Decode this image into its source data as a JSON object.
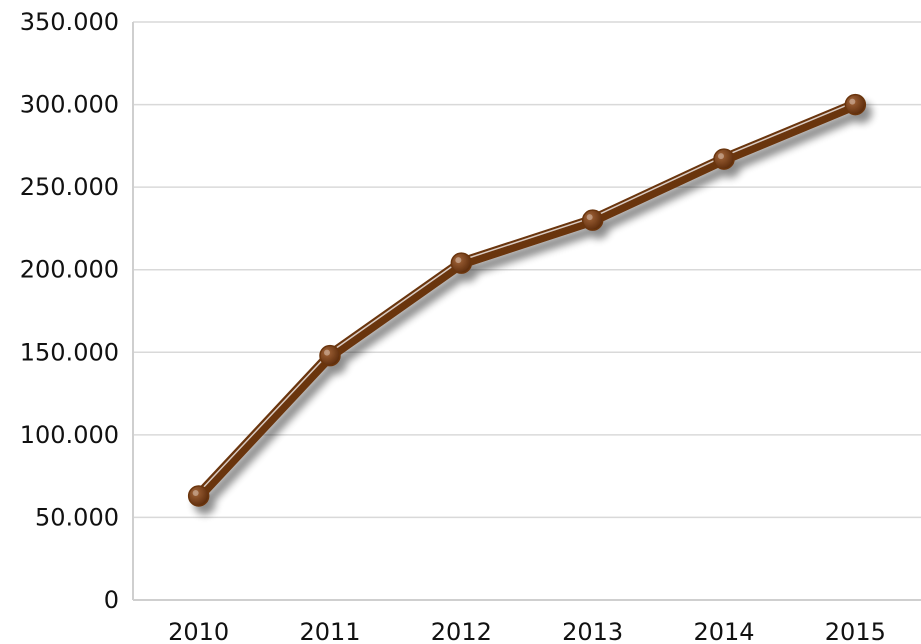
{
  "chart_data": {
    "type": "line",
    "title": "",
    "xlabel": "",
    "ylabel": "",
    "categories": [
      "2010",
      "2011",
      "2012",
      "2013",
      "2014",
      "2015"
    ],
    "series": [
      {
        "values": [
          63000,
          148000,
          204000,
          230000,
          267000,
          300000
        ]
      }
    ],
    "ylim": [
      0,
      350000
    ],
    "yticks": [
      0,
      50000,
      100000,
      150000,
      200000,
      250000,
      300000,
      350000
    ],
    "ytick_labels": [
      "0",
      "50.000",
      "100.000",
      "150.000",
      "200.000",
      "250.000",
      "300.000",
      "350.000"
    ],
    "grid": true,
    "legend": "none",
    "colors": {
      "line": "#6b3510",
      "highlight": "#ffffff",
      "grid": "#d9d9d9",
      "axis": "#cfcfcf"
    }
  }
}
